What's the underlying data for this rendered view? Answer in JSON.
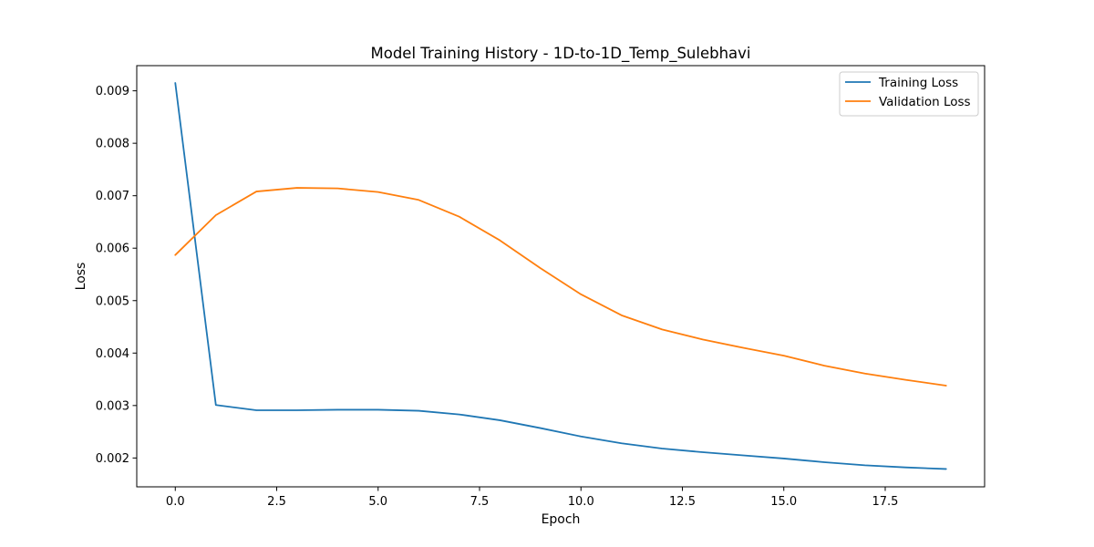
{
  "chart_data": {
    "type": "line",
    "title": "Model Training History - 1D-to-1D_Temp_Sulebhavi",
    "xlabel": "Epoch",
    "ylabel": "Loss",
    "xlim": [
      -0.95,
      19.95
    ],
    "ylim": [
      0.00145,
      0.00948
    ],
    "xticks": [
      0.0,
      2.5,
      5.0,
      7.5,
      10.0,
      12.5,
      15.0,
      17.5
    ],
    "xtick_labels": [
      "0.0",
      "2.5",
      "5.0",
      "7.5",
      "10.0",
      "12.5",
      "15.0",
      "17.5"
    ],
    "yticks": [
      0.002,
      0.003,
      0.004,
      0.005,
      0.006,
      0.007,
      0.008,
      0.009
    ],
    "ytick_labels": [
      "0.002",
      "0.003",
      "0.004",
      "0.005",
      "0.006",
      "0.007",
      "0.008",
      "0.009"
    ],
    "grid": false,
    "legend_position": "top-right",
    "x": [
      0,
      1,
      2,
      3,
      4,
      5,
      6,
      7,
      8,
      9,
      10,
      11,
      12,
      13,
      14,
      15,
      16,
      17,
      18,
      19
    ],
    "series": [
      {
        "name": "Training Loss",
        "color": "#1f77b4",
        "values": [
          0.00915,
          0.00301,
          0.00291,
          0.00291,
          0.00292,
          0.00292,
          0.0029,
          0.00283,
          0.00272,
          0.00257,
          0.00241,
          0.00228,
          0.00218,
          0.00211,
          0.00205,
          0.00199,
          0.00192,
          0.00186,
          0.00182,
          0.00179
        ]
      },
      {
        "name": "Validation Loss",
        "color": "#ff7f0e",
        "values": [
          0.00587,
          0.00663,
          0.00708,
          0.00715,
          0.00714,
          0.00707,
          0.00692,
          0.0066,
          0.00615,
          0.00562,
          0.00512,
          0.00472,
          0.00445,
          0.00426,
          0.0041,
          0.00395,
          0.00376,
          0.00361,
          0.00349,
          0.00338
        ]
      }
    ]
  }
}
